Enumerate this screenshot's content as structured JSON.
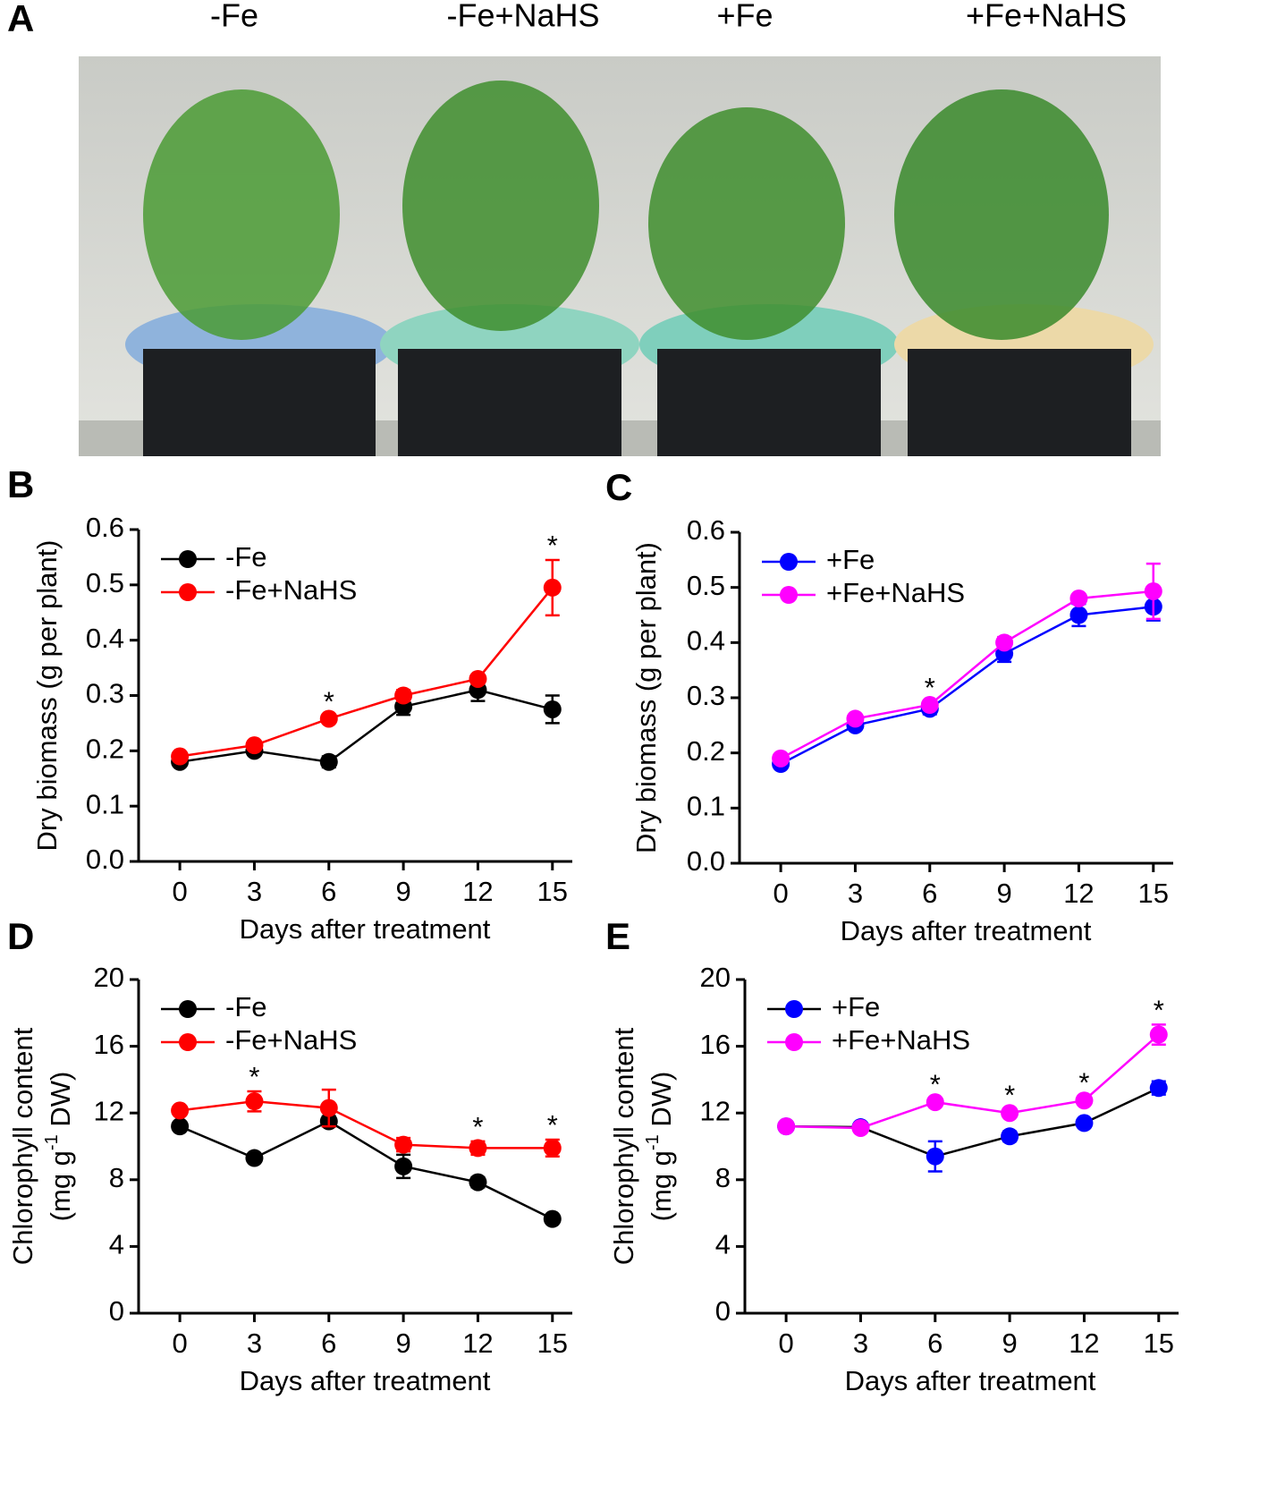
{
  "figure": {
    "panel_labels": [
      "A",
      "B",
      "C",
      "D",
      "E"
    ],
    "photo_labels": [
      "-Fe",
      "-Fe+NaHS",
      "+Fe",
      "+Fe+NaHS"
    ]
  },
  "chart_data": [
    {
      "type": "line",
      "xlabel": "Days after treatment",
      "ylabel": "Dry biomass (g per plant)",
      "x": [
        0,
        3,
        6,
        9,
        12,
        15
      ],
      "xlim": [
        -1.66,
        15.8
      ],
      "xticks": [
        0,
        3,
        6,
        9,
        12,
        15
      ],
      "ylim": [
        0,
        0.6
      ],
      "yticks": [
        {
          "value": 0,
          "label": "0.0"
        },
        0.1,
        0.2,
        0.3,
        0.4,
        0.5,
        0.6
      ],
      "series": [
        {
          "name": "-Fe",
          "color": "#000000",
          "values": [
            0.18,
            0.2,
            0.18,
            0.28,
            0.31,
            0.275
          ],
          "errors": [
            0.005,
            0.005,
            0.01,
            0.015,
            0.02,
            0.025
          ]
        },
        {
          "name": "-Fe+NaHS",
          "color": "#ff0000",
          "values": [
            0.19,
            0.21,
            0.258,
            0.3,
            0.33,
            0.495
          ],
          "errors": [
            0.005,
            0.005,
            0.005,
            0.01,
            0.005,
            0.05
          ]
        }
      ],
      "annotations": [
        {
          "x": 6,
          "text": "*"
        },
        {
          "x": 15,
          "text": "*"
        }
      ]
    },
    {
      "type": "line",
      "xlabel": "Days after treatment",
      "ylabel": "Dry biomass (g per plant)",
      "x": [
        0,
        3,
        6,
        9,
        12,
        15
      ],
      "xlim": [
        -1.66,
        15.8
      ],
      "xticks": [
        0,
        3,
        6,
        9,
        12,
        15
      ],
      "ylim": [
        0,
        0.6
      ],
      "yticks": [
        {
          "value": 0,
          "label": "0.0"
        },
        0.1,
        0.2,
        0.3,
        0.4,
        0.5,
        0.6
      ],
      "series": [
        {
          "name": "+Fe",
          "color": "#0000ff",
          "values": [
            0.18,
            0.25,
            0.28,
            0.38,
            0.45,
            0.465
          ],
          "errors": [
            0.005,
            0.005,
            0.01,
            0.015,
            0.02,
            0.025
          ]
        },
        {
          "name": "+Fe+NaHS",
          "color": "#ff00ff",
          "values": [
            0.19,
            0.262,
            0.287,
            0.4,
            0.48,
            0.493
          ],
          "errors": [
            0.005,
            0.005,
            0.005,
            0.01,
            0.005,
            0.05
          ]
        }
      ],
      "annotations": [
        {
          "x": 6,
          "text": "*"
        }
      ]
    },
    {
      "type": "line",
      "xlabel": "Days after treatment",
      "ylabel": "Chlorophyll content",
      "ylabel_unit": [
        "(mg g",
        "-1",
        " DW)"
      ],
      "x": [
        0,
        3,
        6,
        9,
        12,
        15
      ],
      "xlim": [
        -1.66,
        15.8
      ],
      "xticks": [
        0,
        3,
        6,
        9,
        12,
        15
      ],
      "ylim": [
        0,
        20
      ],
      "yticks": [
        0,
        4,
        8,
        12,
        16,
        20
      ],
      "series": [
        {
          "name": "-Fe",
          "color": "#000000",
          "values": [
            11.2,
            9.3,
            11.5,
            8.8,
            7.85,
            5.65
          ],
          "errors": [
            0.2,
            0.2,
            0.3,
            0.7,
            0.3,
            0.2
          ]
        },
        {
          "name": "-Fe+NaHS",
          "color": "#ff0000",
          "values": [
            12.15,
            12.7,
            12.3,
            10.1,
            9.9,
            9.9
          ],
          "errors": [
            0.2,
            0.6,
            1.1,
            0.4,
            0.4,
            0.5
          ]
        }
      ],
      "annotations": [
        {
          "x": 3,
          "text": "*"
        },
        {
          "x": 12,
          "text": "*"
        },
        {
          "x": 15,
          "text": "*"
        }
      ]
    },
    {
      "type": "line",
      "xlabel": "Days after treatment",
      "ylabel": "Chlorophyll content",
      "ylabel_unit": [
        "(mg g",
        "-1",
        " DW)"
      ],
      "x": [
        0,
        3,
        6,
        9,
        12,
        15
      ],
      "xlim": [
        -1.66,
        15.8
      ],
      "xticks": [
        0,
        3,
        6,
        9,
        12,
        15
      ],
      "ylim": [
        0,
        20
      ],
      "yticks": [
        0,
        4,
        8,
        12,
        16,
        20
      ],
      "series": [
        {
          "name": "+Fe",
          "color": "#0000ff",
          "line_color": "#000000",
          "values": [
            11.2,
            11.15,
            9.4,
            10.6,
            11.4,
            13.5
          ],
          "errors": [
            0.1,
            0.2,
            0.9,
            0.3,
            0.2,
            0.4
          ]
        },
        {
          "name": "+Fe+NaHS",
          "color": "#ff00ff",
          "values": [
            11.2,
            11.1,
            12.65,
            12.0,
            12.75,
            16.7
          ],
          "errors": [
            0.1,
            0.1,
            0.2,
            0.2,
            0.2,
            0.6
          ]
        }
      ],
      "annotations": [
        {
          "x": 6,
          "text": "*"
        },
        {
          "x": 9,
          "text": "*"
        },
        {
          "x": 12,
          "text": "*"
        },
        {
          "x": 15,
          "text": "*"
        }
      ]
    }
  ]
}
